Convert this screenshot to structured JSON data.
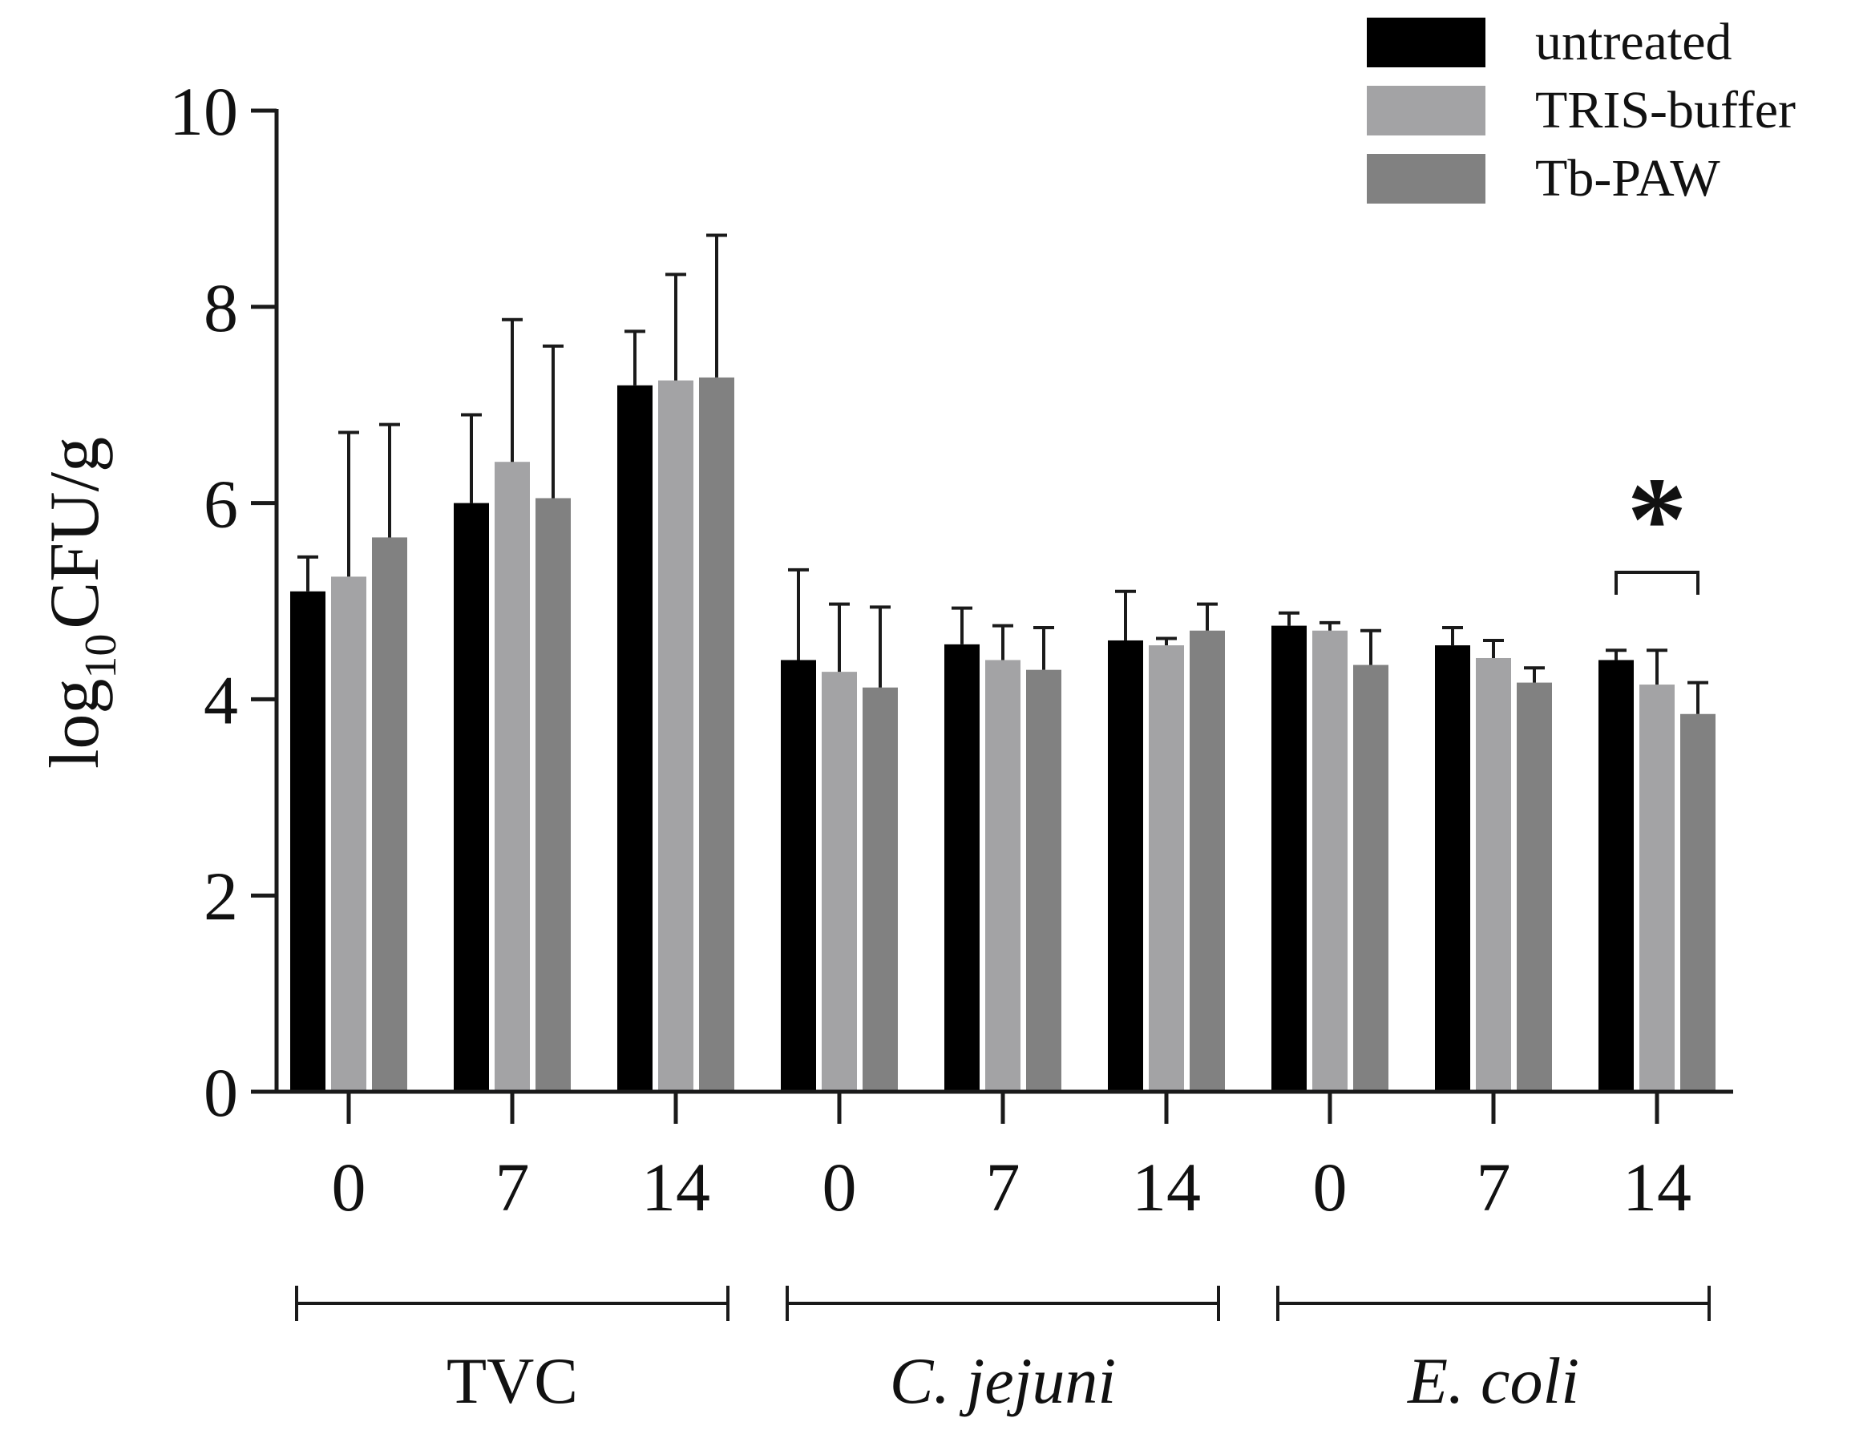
{
  "chart_data": {
    "type": "bar",
    "ylabel_parts": {
      "base": "log",
      "subscript": "10",
      "rest": "CFU/g"
    },
    "ylim": [
      0,
      10
    ],
    "yticks": [
      "0",
      "2",
      "4",
      "6",
      "8",
      "10"
    ],
    "categories": [
      "0",
      "7",
      "14",
      "0",
      "7",
      "14",
      "0",
      "7",
      "14"
    ],
    "groups": [
      {
        "label": "TVC",
        "italic": false,
        "categories": [
          0,
          1,
          2
        ]
      },
      {
        "label": "C. jejuni",
        "italic": true,
        "categories": [
          3,
          4,
          5
        ]
      },
      {
        "label": "E. coli",
        "italic": true,
        "categories": [
          6,
          7,
          8
        ]
      }
    ],
    "series": [
      {
        "name": "untreated",
        "color": "#000000",
        "values": [
          5.1,
          6.0,
          7.2,
          4.4,
          4.56,
          4.6,
          4.75,
          4.55,
          4.4
        ],
        "errors": [
          0.35,
          0.9,
          0.55,
          0.92,
          0.37,
          0.5,
          0.13,
          0.18,
          0.1
        ]
      },
      {
        "name": "TRIS-buffer",
        "color": "#a3a3a5",
        "values": [
          5.25,
          6.42,
          7.25,
          4.28,
          4.4,
          4.55,
          4.7,
          4.42,
          4.15
        ],
        "errors": [
          1.47,
          1.45,
          1.08,
          0.69,
          0.35,
          0.07,
          0.08,
          0.18,
          0.35
        ]
      },
      {
        "name": "Tb-PAW",
        "color": "#818181",
        "values": [
          5.65,
          6.05,
          7.28,
          4.12,
          4.3,
          4.7,
          4.35,
          4.17,
          3.85
        ],
        "errors": [
          1.15,
          1.55,
          1.45,
          0.82,
          0.43,
          0.27,
          0.35,
          0.15,
          0.32
        ]
      }
    ],
    "annotations": [
      {
        "text": "*",
        "category_index": 8,
        "series_span": [
          0,
          2
        ]
      }
    ],
    "legend_position": "top-right",
    "grid": false
  }
}
